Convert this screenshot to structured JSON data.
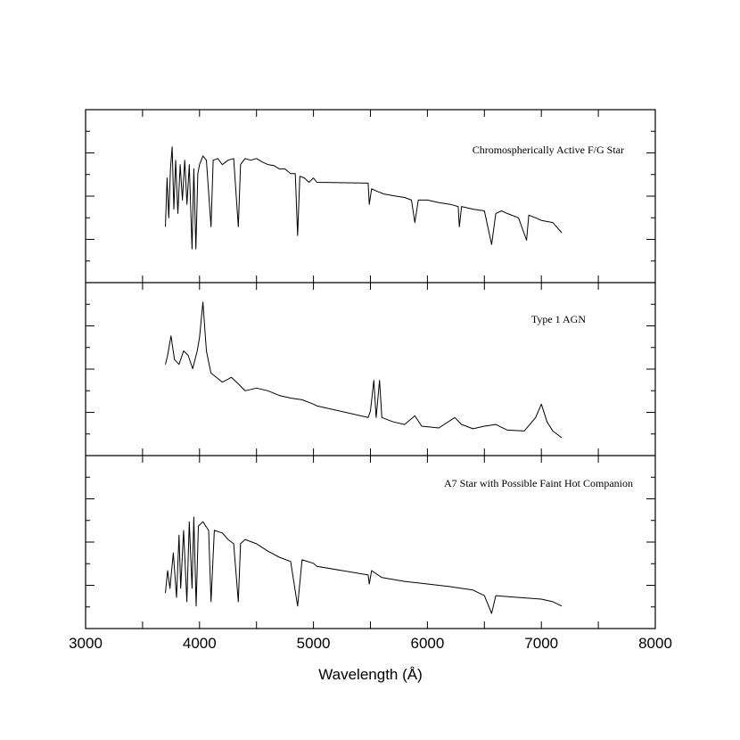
{
  "chart_data": [
    {
      "type": "line",
      "annotation": "Chromospherically Active F/G Star",
      "color": "#000000",
      "xlim": [
        3000,
        8000
      ],
      "xticks": [
        3000,
        4000,
        5000,
        6000,
        7000,
        8000
      ],
      "ylim": [
        0,
        4
      ],
      "yticks": [
        1,
        2,
        3
      ],
      "x": [
        3700,
        3715,
        3730,
        3745,
        3760,
        3775,
        3790,
        3810,
        3830,
        3850,
        3870,
        3890,
        3910,
        3934,
        3950,
        3968,
        3985,
        4000,
        4030,
        4060,
        4101,
        4120,
        4160,
        4200,
        4250,
        4300,
        4340,
        4360,
        4400,
        4450,
        4500,
        4550,
        4600,
        4650,
        4700,
        4750,
        4800,
        4840,
        4861,
        4880,
        4920,
        4960,
        5000,
        5030,
        5480,
        5490,
        5510,
        5560,
        5620,
        5700,
        5800,
        5860,
        5890,
        5920,
        6000,
        6100,
        6200,
        6270,
        6280,
        6300,
        6400,
        6500,
        6563,
        6600,
        6650,
        6700,
        6800,
        6870,
        6890,
        6950,
        7000,
        7100,
        7180
      ],
      "values": [
        1.29,
        2.42,
        1.5,
        2.63,
        3.14,
        1.7,
        2.83,
        1.6,
        2.73,
        1.91,
        2.83,
        1.81,
        2.73,
        0.78,
        2.63,
        0.78,
        2.52,
        2.73,
        2.93,
        2.83,
        1.29,
        2.83,
        2.87,
        2.73,
        2.83,
        2.87,
        1.29,
        2.73,
        2.87,
        2.83,
        2.87,
        2.79,
        2.73,
        2.71,
        2.63,
        2.63,
        2.52,
        2.52,
        1.09,
        2.46,
        2.42,
        2.32,
        2.42,
        2.32,
        2.3,
        1.81,
        2.17,
        2.11,
        2.05,
        2.01,
        1.97,
        1.91,
        1.39,
        1.91,
        1.91,
        1.85,
        1.81,
        1.76,
        1.29,
        1.76,
        1.7,
        1.66,
        0.88,
        1.6,
        1.66,
        1.6,
        1.5,
        0.98,
        1.56,
        1.5,
        1.44,
        1.39,
        1.15
      ]
    },
    {
      "type": "line",
      "annotation": "Type 1 AGN",
      "color": "#000000",
      "xlim": [
        3000,
        8000
      ],
      "xticks": [
        3000,
        4000,
        5000,
        6000,
        7000,
        8000
      ],
      "ylim": [
        0,
        4
      ],
      "yticks": [
        1,
        2,
        3
      ],
      "x": [
        3700,
        3720,
        3750,
        3780,
        3820,
        3860,
        3900,
        3940,
        3980,
        4000,
        4030,
        4060,
        4100,
        4200,
        4280,
        4340,
        4400,
        4500,
        4600,
        4700,
        4800,
        4900,
        5000,
        5030,
        5480,
        5500,
        5530,
        5550,
        5580,
        5600,
        5700,
        5800,
        5890,
        5950,
        6100,
        6240,
        6300,
        6400,
        6500,
        6600,
        6700,
        6850,
        6950,
        7000,
        7050,
        7100,
        7180
      ],
      "values": [
        2.11,
        2.32,
        2.77,
        2.22,
        2.11,
        2.42,
        2.32,
        2.01,
        2.42,
        2.73,
        3.55,
        2.42,
        1.91,
        1.7,
        1.81,
        1.66,
        1.5,
        1.56,
        1.5,
        1.39,
        1.33,
        1.29,
        1.19,
        1.15,
        0.88,
        1.03,
        1.74,
        0.88,
        1.74,
        0.88,
        0.78,
        0.72,
        0.92,
        0.68,
        0.64,
        0.88,
        0.72,
        0.62,
        0.68,
        0.72,
        0.59,
        0.57,
        0.88,
        1.19,
        0.78,
        0.57,
        0.41
      ]
    },
    {
      "type": "line",
      "annotation": "A7 Star with Possible Faint Hot Companion",
      "color": "#000000",
      "xlim": [
        3000,
        8000
      ],
      "xticks": [
        3000,
        4000,
        5000,
        6000,
        7000,
        8000
      ],
      "ylim": [
        0,
        4
      ],
      "yticks": [
        1,
        2,
        3
      ],
      "xlabel": "Wavelength (Å)",
      "x": [
        3700,
        3720,
        3740,
        3770,
        3798,
        3820,
        3835,
        3860,
        3889,
        3910,
        3934,
        3950,
        3970,
        3990,
        4030,
        4080,
        4101,
        4130,
        4200,
        4250,
        4300,
        4340,
        4360,
        4400,
        4500,
        4600,
        4700,
        4800,
        4861,
        4900,
        5000,
        5030,
        5480,
        5490,
        5510,
        5600,
        5800,
        6000,
        6200,
        6400,
        6500,
        6563,
        6600,
        6800,
        7000,
        7100,
        7180
      ],
      "values": [
        0.82,
        1.34,
        0.93,
        1.75,
        0.72,
        2.16,
        0.93,
        2.27,
        0.62,
        2.47,
        0.93,
        2.58,
        0.52,
        2.37,
        2.47,
        2.27,
        0.62,
        2.27,
        2.21,
        2.06,
        1.96,
        0.62,
        1.96,
        2.06,
        1.96,
        1.79,
        1.65,
        1.55,
        0.52,
        1.59,
        1.51,
        1.44,
        1.24,
        1.03,
        1.34,
        1.18,
        1.09,
        1.03,
        0.97,
        0.89,
        0.76,
        0.35,
        0.76,
        0.72,
        0.68,
        0.62,
        0.52
      ]
    }
  ]
}
